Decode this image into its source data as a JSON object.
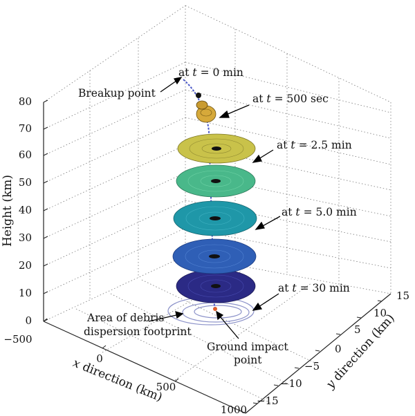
{
  "axes": {
    "z_label": "Height (km)",
    "x_label_var": "x",
    "x_label_rest": " direction (km)",
    "y_label_var": "y",
    "y_label_rest": " direction (km)",
    "z_ticks": [
      "0",
      "10",
      "20",
      "30",
      "40",
      "50",
      "60",
      "70",
      "80"
    ],
    "x_ticks": [
      "−500",
      "0",
      "500",
      "1000"
    ],
    "y_ticks": [
      "−15",
      "−10",
      "−5",
      "0",
      "5",
      "10",
      "15"
    ]
  },
  "annotations": {
    "t0_prefix": "at ",
    "t0_var": "t",
    "t0_rest": " = 0 min",
    "t500_prefix": "at ",
    "t500_var": "t",
    "t500_rest": " = 500 sec",
    "t25_prefix": "at ",
    "t25_var": "t",
    "t25_rest": " = 2.5 min",
    "t50_prefix": "at ",
    "t50_var": "t",
    "t50_rest": " = 5.0 min",
    "t30_prefix": "at ",
    "t30_var": "t",
    "t30_rest": " = 30 min",
    "breakup": "Breakup point",
    "debris_line1": "Area of debris",
    "debris_line2": "dispersion footprint",
    "impact_line1": "Ground impact",
    "impact_line2": "point"
  },
  "colors": {
    "disk_t25": "#c9c24a",
    "disk_t35": "#49b88a",
    "disk_t50": "#1f97a8",
    "disk_t65": "#2f5fb6",
    "disk_t30": "#2b2a85",
    "small_gold": "#d6a93a",
    "trajectory": "#4a58c8",
    "footprint": "#7f86c4"
  }
}
